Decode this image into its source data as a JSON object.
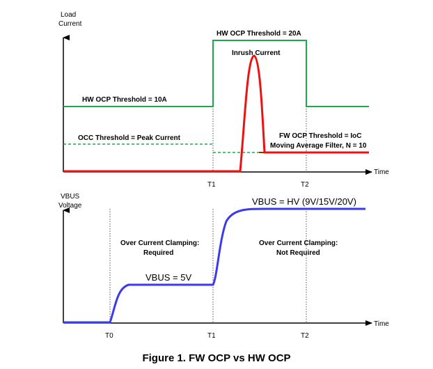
{
  "top_chart": {
    "y_axis_label_line1": "Load",
    "y_axis_label_line2": "Current",
    "x_axis_label": "Time",
    "ticks": [
      "T1",
      "T2"
    ],
    "hw_ocp_high_label": "HW OCP Threshold = 20A",
    "hw_ocp_low_label": "HW OCP Threshold = 10A",
    "occ_label": "OCC Threshold = Peak Current",
    "inrush_label": "Inrush Current",
    "fw_ocp_label_line1": "FW OCP Threshold = IoC",
    "fw_ocp_label_line2": "Moving Average Filter, N = 10",
    "colors": {
      "hw_ocp": "#1aaa4a",
      "occ": "#1aaa4a",
      "current": "#ee1111",
      "fw_ocp": "#7a3a1a"
    }
  },
  "bottom_chart": {
    "y_axis_label_line1": "VBUS",
    "y_axis_label_line2": "Voltage",
    "x_axis_label": "Time",
    "ticks": [
      "T0",
      "T1",
      "T2"
    ],
    "vbus_low_label": "VBUS = 5V",
    "vbus_high_label": "VBUS = HV (9V/15V/20V)",
    "clamp_required_line1": "Over Current Clamping:",
    "clamp_required_line2": "Required",
    "clamp_not_required_line1": "Over Current Clamping:",
    "clamp_not_required_line2": "Not Required",
    "colors": {
      "vbus": "#3a3aee"
    }
  },
  "caption": "Figure 1. FW OCP vs HW OCP"
}
